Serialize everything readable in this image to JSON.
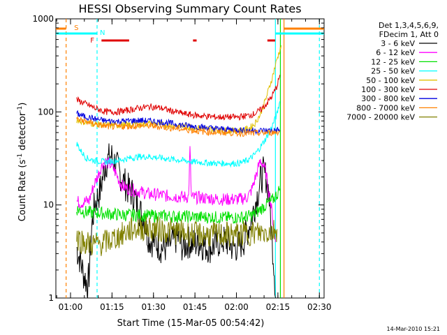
{
  "chart_data": {
    "type": "line",
    "title": "HESSI Observing Summary Count Rates",
    "xlabel": "Start Time (15-Mar-05 00:54:42)",
    "ylabel_main": "Count Rate (s",
    "ylabel_sup1": "-1",
    "ylabel_mid": " detector",
    "ylabel_sup2": "-1",
    "ylabel_end": ")",
    "xlim_minutes": [
      0,
      97
    ],
    "ylim": [
      1,
      1000
    ],
    "yscale": "log",
    "x_ticks": [
      {
        "label": "01:00",
        "minute": 5.3
      },
      {
        "label": "01:15",
        "minute": 20.3
      },
      {
        "label": "01:30",
        "minute": 35.3
      },
      {
        "label": "01:45",
        "minute": 50.3
      },
      {
        "label": "02:00",
        "minute": 65.3
      },
      {
        "label": "02:15",
        "minute": 80.3
      },
      {
        "label": "02:30",
        "minute": 95.3
      }
    ],
    "y_ticks": [
      {
        "label": "1",
        "value": 1
      },
      {
        "label": "10",
        "value": 10
      },
      {
        "label": "100",
        "value": 100
      },
      {
        "label": "1000",
        "value": 1000
      }
    ],
    "legend": {
      "header1": "Det 1,3,4,5,6,9,",
      "header2": "FDecim 1, Att 0",
      "entries": [
        {
          "label": "3 - 6 keV",
          "color": "#000000"
        },
        {
          "label": "6 - 12 keV",
          "color": "#ff00ff"
        },
        {
          "label": "12 - 25 keV",
          "color": "#00e000"
        },
        {
          "label": "25 - 50 keV",
          "color": "#00ffff"
        },
        {
          "label": "50 - 100 keV",
          "color": "#e0c000"
        },
        {
          "label": "100 - 300 keV",
          "color": "#e00000"
        },
        {
          "label": "300 - 800 keV",
          "color": "#0000e0"
        },
        {
          "label": "800 - 7000 keV",
          "color": "#ff8000"
        },
        {
          "label": "7000 - 20000 keV",
          "color": "#808000"
        }
      ]
    },
    "series": [
      {
        "name": "3 - 6 keV",
        "color": "#000000",
        "x": [
          7.5,
          8,
          9,
          10,
          11,
          11.5,
          12,
          13,
          14,
          15,
          16,
          17,
          18,
          20,
          22,
          24,
          26,
          28,
          30,
          32,
          33,
          34,
          36,
          38,
          40,
          42,
          44,
          46,
          48,
          50,
          52,
          54,
          56,
          58,
          60,
          62,
          64,
          66,
          68,
          70,
          72,
          74,
          75,
          76,
          77,
          78,
          79,
          79.5
        ],
        "y": [
          3.5,
          3,
          2.5,
          1.8,
          1.5,
          1.3,
          1.8,
          6,
          10,
          12,
          14,
          20,
          28,
          34,
          26,
          19,
          15,
          13,
          9,
          7,
          5,
          4.2,
          4,
          3.5,
          3.5,
          4,
          4.5,
          3.5,
          4,
          3.8,
          4,
          3.6,
          3.5,
          3.8,
          4.2,
          4,
          3.5,
          3.6,
          4.2,
          6,
          10,
          18,
          22,
          20,
          14,
          5,
          2,
          1
        ]
      },
      {
        "name": "6 - 12 keV",
        "color": "#ff00ff",
        "x": [
          7.5,
          9,
          11,
          12,
          13,
          14,
          15,
          16,
          17,
          18,
          19,
          20,
          21,
          22,
          23,
          24,
          26,
          28,
          30,
          32,
          34,
          36,
          38,
          40,
          42,
          44,
          46,
          48,
          48.5,
          49,
          50,
          52,
          54,
          56,
          58,
          60,
          62,
          64,
          66,
          68,
          69,
          70,
          71,
          72,
          73,
          74,
          75,
          76,
          77,
          78,
          79,
          79.5
        ],
        "y": [
          11,
          10.5,
          11,
          11,
          14,
          17,
          20,
          24,
          28,
          29,
          28,
          27,
          24,
          21,
          18,
          16,
          15,
          14.5,
          14,
          13.5,
          13,
          13,
          12.8,
          12.5,
          12.5,
          12.3,
          12.2,
          12.2,
          40,
          12,
          12,
          12,
          11.8,
          11.8,
          11.5,
          11.5,
          11.5,
          11.5,
          11.5,
          11.8,
          12,
          13,
          15,
          19,
          24,
          30,
          27,
          22,
          14,
          9,
          5,
          4
        ]
      },
      {
        "name": "12 - 25 keV",
        "color": "#00e000",
        "x": [
          7.5,
          10,
          12,
          14,
          16,
          18,
          20,
          24,
          28,
          32,
          36,
          40,
          44,
          48,
          52,
          56,
          60,
          64,
          68,
          70,
          72,
          74,
          76,
          78,
          80,
          81
        ],
        "y": [
          9,
          8.5,
          8.3,
          8.2,
          8.2,
          8.1,
          8,
          7.8,
          7.8,
          7.7,
          7.6,
          7.6,
          7.5,
          7.5,
          7.4,
          7.4,
          7.3,
          7.3,
          7.4,
          7.6,
          8,
          9,
          10,
          11,
          13,
          15
        ]
      },
      {
        "name": "25 - 50 keV",
        "color": "#00ffff",
        "x": [
          7.5,
          9,
          11,
          14,
          18,
          22,
          26,
          30,
          34,
          38,
          42,
          46,
          50,
          54,
          58,
          62,
          66,
          68,
          70,
          72,
          74,
          76,
          78,
          80,
          81
        ],
        "y": [
          46,
          38,
          32,
          30,
          29,
          30,
          31.5,
          33,
          33,
          32,
          31,
          30,
          29,
          28.5,
          28,
          28,
          28,
          29,
          31,
          35,
          42,
          52,
          68,
          95,
          130
        ]
      },
      {
        "name": "50 - 100 keV",
        "color": "#e0c000",
        "x": [
          7.5,
          10,
          14,
          18,
          22,
          26,
          30,
          34,
          38,
          42,
          46,
          50,
          54,
          58,
          62,
          66,
          68,
          70,
          72,
          74,
          76,
          78,
          80,
          81.5
        ],
        "y": [
          82,
          78,
          74,
          72,
          72,
          73,
          74,
          75,
          73,
          71,
          70,
          68,
          66,
          64,
          63,
          63,
          64,
          67,
          75,
          95,
          140,
          220,
          370,
          520
        ]
      },
      {
        "name": "100 - 300 keV",
        "color": "#e00000",
        "x": [
          7.5,
          10,
          14,
          18,
          22,
          26,
          30,
          34,
          38,
          42,
          46,
          50,
          54,
          58,
          62,
          66,
          68,
          70,
          72,
          74,
          76,
          78,
          80,
          81
        ],
        "y": [
          135,
          125,
          110,
          100,
          100,
          104,
          110,
          114,
          110,
          102,
          96,
          92,
          90,
          88,
          88,
          88,
          90,
          92,
          96,
          105,
          120,
          145,
          190,
          250
        ]
      },
      {
        "name": "300 - 800 keV",
        "color": "#0000e0",
        "x": [
          7.5,
          10,
          14,
          18,
          22,
          26,
          30,
          34,
          38,
          42,
          46,
          50,
          54,
          58,
          62,
          66,
          70,
          74,
          78,
          81
        ],
        "y": [
          96,
          90,
          84,
          80,
          79,
          80,
          81,
          80,
          78,
          75,
          72,
          70,
          68,
          66,
          65,
          64,
          63,
          63,
          63,
          64
        ]
      },
      {
        "name": "800 - 7000 keV",
        "color": "#ff8000",
        "x": [
          7.5,
          10,
          14,
          18,
          22,
          26,
          30,
          34,
          38,
          42,
          46,
          50,
          54,
          58,
          62,
          66,
          70,
          74,
          78,
          81
        ],
        "y": [
          84,
          80,
          74,
          70,
          69,
          70,
          71,
          71,
          69,
          67,
          65,
          63,
          61,
          60,
          60,
          59,
          59,
          59,
          60,
          61
        ]
      },
      {
        "name": "7000 - 20000 keV",
        "color": "#808000",
        "x": [
          7.5,
          10,
          12,
          14,
          16,
          18,
          20,
          22,
          24,
          26,
          28,
          30,
          34,
          38,
          42,
          46,
          50,
          54,
          58,
          62,
          66,
          70,
          74,
          78,
          80
        ],
        "y": [
          4.5,
          4,
          3.8,
          3.8,
          3.8,
          4,
          4.2,
          4.5,
          4.8,
          5.2,
          5.5,
          5.6,
          5.6,
          5.4,
          5.2,
          5,
          4.8,
          4.8,
          4.8,
          4.8,
          4.8,
          5,
          5,
          5.2,
          5.5
        ]
      }
    ],
    "annotations": [
      {
        "label": "S",
        "minute": 5.6,
        "color": "#ff8000"
      },
      {
        "label": "N",
        "minute": 14.9,
        "color": "#00ffff"
      },
      {
        "label": "F",
        "minute": 14.9,
        "color": "#e00000"
      }
    ],
    "vertical_markers": [
      {
        "minute": 3.7,
        "color": "#ff8000",
        "style": "dashed"
      },
      {
        "minute": 14.9,
        "color": "#00ffff",
        "style": "dashed"
      },
      {
        "minute": 79.4,
        "color": "#00ffff",
        "style": "solid"
      },
      {
        "minute": 81.2,
        "color": "#00e000",
        "style": "solid"
      },
      {
        "minute": 82.5,
        "color": "#ff8000",
        "style": "solid"
      },
      {
        "minute": 95.3,
        "color": "#00ffff",
        "style": "dashed"
      }
    ],
    "timestamp": "14-Mar-2010 15:21"
  }
}
